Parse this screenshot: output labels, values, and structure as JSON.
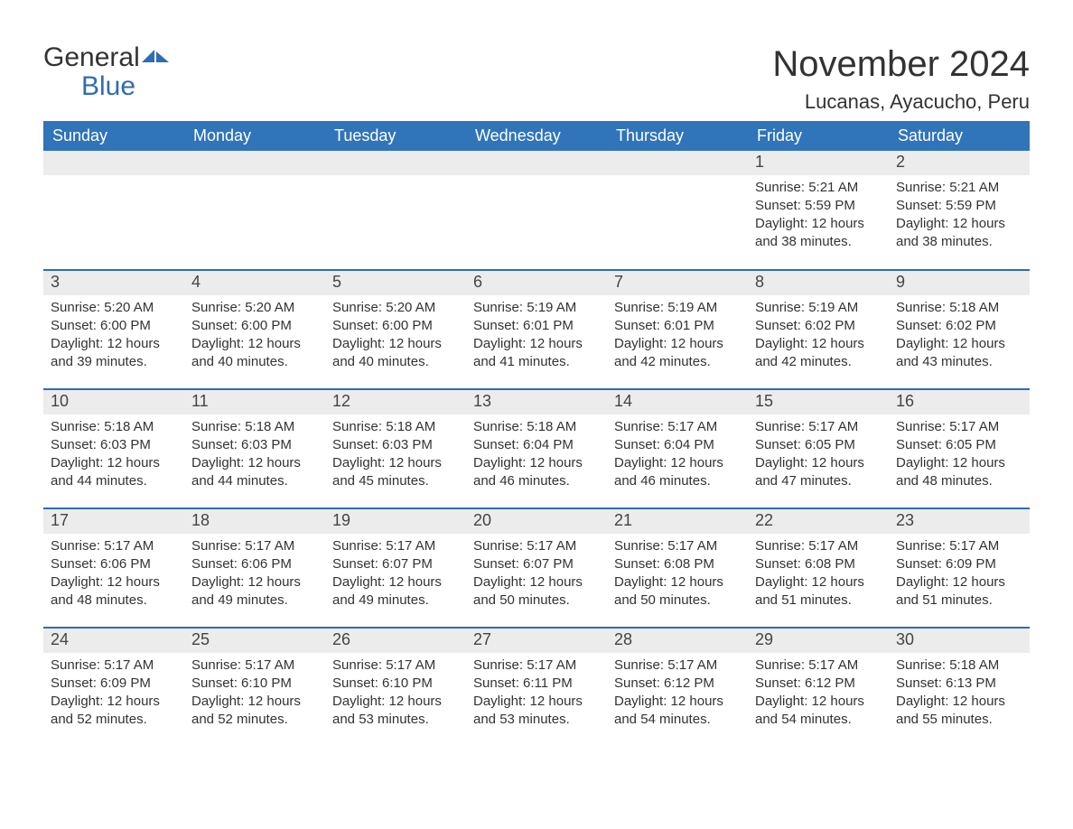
{
  "brand": {
    "name_part1": "General",
    "name_part2": "Blue",
    "text_color": "#333333",
    "blue_color": "#2f6cb3"
  },
  "header": {
    "title": "November 2024",
    "subtitle": "Lucanas, Ayacucho, Peru"
  },
  "colors": {
    "header_bg": "#3074b9",
    "header_text": "#ffffff",
    "daynum_bg": "#ececec",
    "rule": "#2f6cb3",
    "body_text": "#333333",
    "page_bg": "#ffffff"
  },
  "columns": [
    "Sunday",
    "Monday",
    "Tuesday",
    "Wednesday",
    "Thursday",
    "Friday",
    "Saturday"
  ],
  "weeks": [
    [
      {
        "empty": true
      },
      {
        "empty": true
      },
      {
        "empty": true
      },
      {
        "empty": true
      },
      {
        "empty": true
      },
      {
        "day": "1",
        "sunrise": "5:21 AM",
        "sunset": "5:59 PM",
        "daylight": "12 hours and 38 minutes."
      },
      {
        "day": "2",
        "sunrise": "5:21 AM",
        "sunset": "5:59 PM",
        "daylight": "12 hours and 38 minutes."
      }
    ],
    [
      {
        "day": "3",
        "sunrise": "5:20 AM",
        "sunset": "6:00 PM",
        "daylight": "12 hours and 39 minutes."
      },
      {
        "day": "4",
        "sunrise": "5:20 AM",
        "sunset": "6:00 PM",
        "daylight": "12 hours and 40 minutes."
      },
      {
        "day": "5",
        "sunrise": "5:20 AM",
        "sunset": "6:00 PM",
        "daylight": "12 hours and 40 minutes."
      },
      {
        "day": "6",
        "sunrise": "5:19 AM",
        "sunset": "6:01 PM",
        "daylight": "12 hours and 41 minutes."
      },
      {
        "day": "7",
        "sunrise": "5:19 AM",
        "sunset": "6:01 PM",
        "daylight": "12 hours and 42 minutes."
      },
      {
        "day": "8",
        "sunrise": "5:19 AM",
        "sunset": "6:02 PM",
        "daylight": "12 hours and 42 minutes."
      },
      {
        "day": "9",
        "sunrise": "5:18 AM",
        "sunset": "6:02 PM",
        "daylight": "12 hours and 43 minutes."
      }
    ],
    [
      {
        "day": "10",
        "sunrise": "5:18 AM",
        "sunset": "6:03 PM",
        "daylight": "12 hours and 44 minutes."
      },
      {
        "day": "11",
        "sunrise": "5:18 AM",
        "sunset": "6:03 PM",
        "daylight": "12 hours and 44 minutes."
      },
      {
        "day": "12",
        "sunrise": "5:18 AM",
        "sunset": "6:03 PM",
        "daylight": "12 hours and 45 minutes."
      },
      {
        "day": "13",
        "sunrise": "5:18 AM",
        "sunset": "6:04 PM",
        "daylight": "12 hours and 46 minutes."
      },
      {
        "day": "14",
        "sunrise": "5:17 AM",
        "sunset": "6:04 PM",
        "daylight": "12 hours and 46 minutes."
      },
      {
        "day": "15",
        "sunrise": "5:17 AM",
        "sunset": "6:05 PM",
        "daylight": "12 hours and 47 minutes."
      },
      {
        "day": "16",
        "sunrise": "5:17 AM",
        "sunset": "6:05 PM",
        "daylight": "12 hours and 48 minutes."
      }
    ],
    [
      {
        "day": "17",
        "sunrise": "5:17 AM",
        "sunset": "6:06 PM",
        "daylight": "12 hours and 48 minutes."
      },
      {
        "day": "18",
        "sunrise": "5:17 AM",
        "sunset": "6:06 PM",
        "daylight": "12 hours and 49 minutes."
      },
      {
        "day": "19",
        "sunrise": "5:17 AM",
        "sunset": "6:07 PM",
        "daylight": "12 hours and 49 minutes."
      },
      {
        "day": "20",
        "sunrise": "5:17 AM",
        "sunset": "6:07 PM",
        "daylight": "12 hours and 50 minutes."
      },
      {
        "day": "21",
        "sunrise": "5:17 AM",
        "sunset": "6:08 PM",
        "daylight": "12 hours and 50 minutes."
      },
      {
        "day": "22",
        "sunrise": "5:17 AM",
        "sunset": "6:08 PM",
        "daylight": "12 hours and 51 minutes."
      },
      {
        "day": "23",
        "sunrise": "5:17 AM",
        "sunset": "6:09 PM",
        "daylight": "12 hours and 51 minutes."
      }
    ],
    [
      {
        "day": "24",
        "sunrise": "5:17 AM",
        "sunset": "6:09 PM",
        "daylight": "12 hours and 52 minutes."
      },
      {
        "day": "25",
        "sunrise": "5:17 AM",
        "sunset": "6:10 PM",
        "daylight": "12 hours and 52 minutes."
      },
      {
        "day": "26",
        "sunrise": "5:17 AM",
        "sunset": "6:10 PM",
        "daylight": "12 hours and 53 minutes."
      },
      {
        "day": "27",
        "sunrise": "5:17 AM",
        "sunset": "6:11 PM",
        "daylight": "12 hours and 53 minutes."
      },
      {
        "day": "28",
        "sunrise": "5:17 AM",
        "sunset": "6:12 PM",
        "daylight": "12 hours and 54 minutes."
      },
      {
        "day": "29",
        "sunrise": "5:17 AM",
        "sunset": "6:12 PM",
        "daylight": "12 hours and 54 minutes."
      },
      {
        "day": "30",
        "sunrise": "5:18 AM",
        "sunset": "6:13 PM",
        "daylight": "12 hours and 55 minutes."
      }
    ]
  ],
  "labels": {
    "sunrise": "Sunrise:",
    "sunset": "Sunset:",
    "daylight": "Daylight:"
  },
  "font": {
    "title_size": 40,
    "subtitle_size": 22,
    "header_size": 18,
    "daynum_size": 18,
    "body_size": 15
  }
}
